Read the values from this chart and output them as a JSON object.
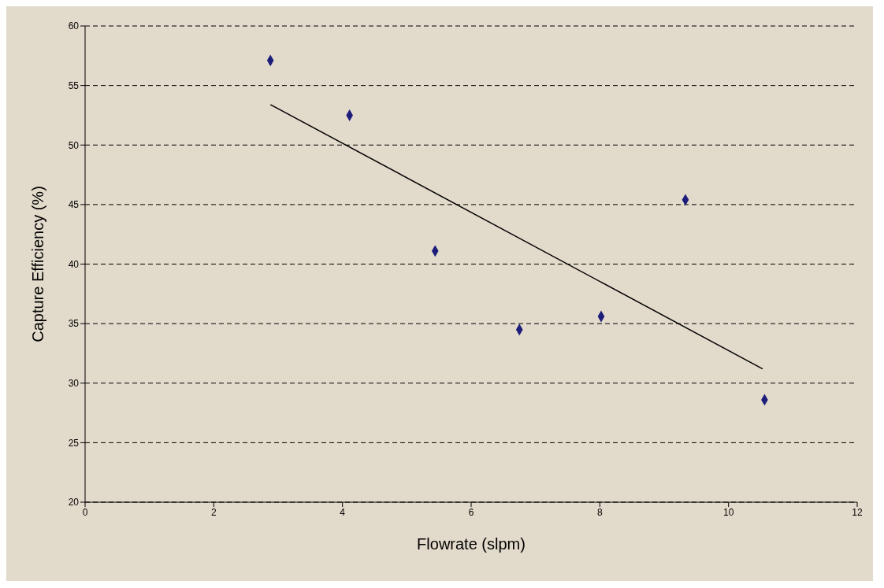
{
  "chart_data": {
    "type": "scatter",
    "xlabel": "Flowrate (slpm)",
    "ylabel": "Capture Efficiency (%)",
    "xlim": [
      0,
      12
    ],
    "xticks": [
      0,
      2,
      4,
      6,
      8,
      10,
      12
    ],
    "ylim": [
      20,
      60
    ],
    "yticks": [
      20,
      25,
      30,
      35,
      40,
      45,
      50,
      55,
      60
    ],
    "grid": "y",
    "marker": "diamond",
    "series": [
      {
        "color": "#1c1c7a",
        "x": [
          2.88,
          4.11,
          5.44,
          6.75,
          8.02,
          9.33,
          10.56
        ],
        "values": [
          57.1,
          52.5,
          41.1,
          34.5,
          35.6,
          45.4,
          28.6
        ]
      },
      {
        "type": "line",
        "color": "#000000",
        "x": [
          2.88,
          10.53
        ],
        "values": [
          53.4,
          31.2
        ],
        "marker": "none",
        "line_style": "solid"
      }
    ]
  }
}
